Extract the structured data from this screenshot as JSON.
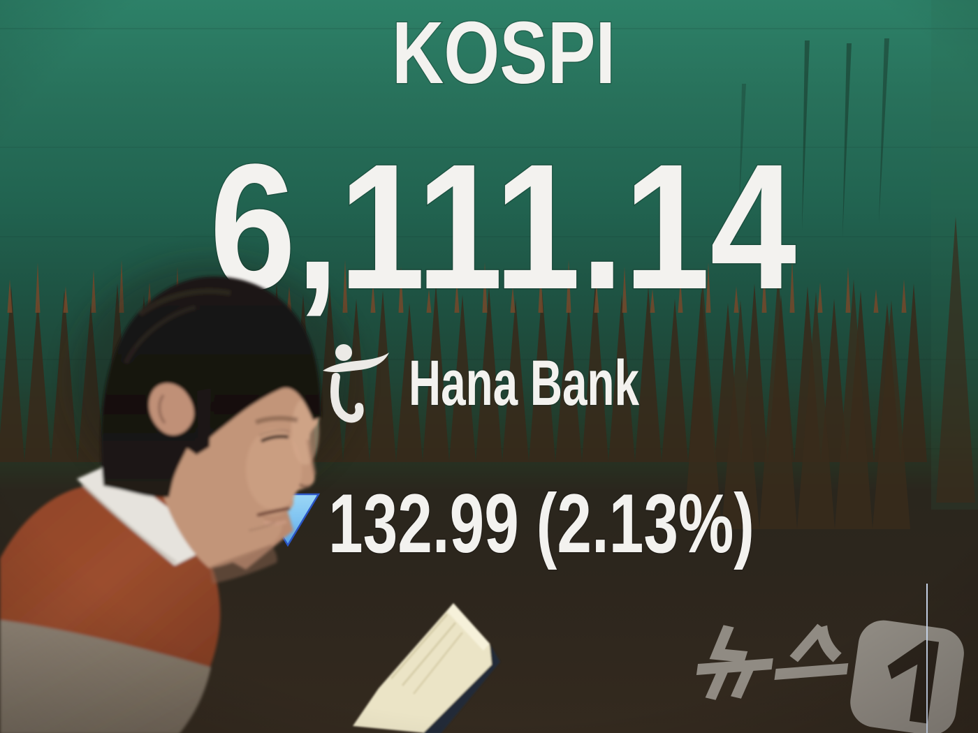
{
  "screen": {
    "index_name": "KOSPI",
    "index_value": "6,111.14",
    "change": {
      "direction": "down",
      "display": "132.99 (2.13%)",
      "value": "132.99",
      "percent": "2.13%"
    },
    "bank": {
      "name": "Hana Bank",
      "logo": "hana-symbol-icon"
    },
    "colors": {
      "board_green_top": "#2d8168",
      "board_dark_bottom": "#342a1f",
      "board_text": "#f3f2ef",
      "decline_triangle_blue": "#7fc3f1",
      "ticker_red_line": "#e04438",
      "ticker_blue_line": "#3e6cf0"
    }
  },
  "watermark": {
    "agency_text": "뉴스",
    "agency_number": "1",
    "color": "#a6a19a"
  },
  "foreground": {
    "person": "person-silhouette",
    "book": "open-book"
  }
}
